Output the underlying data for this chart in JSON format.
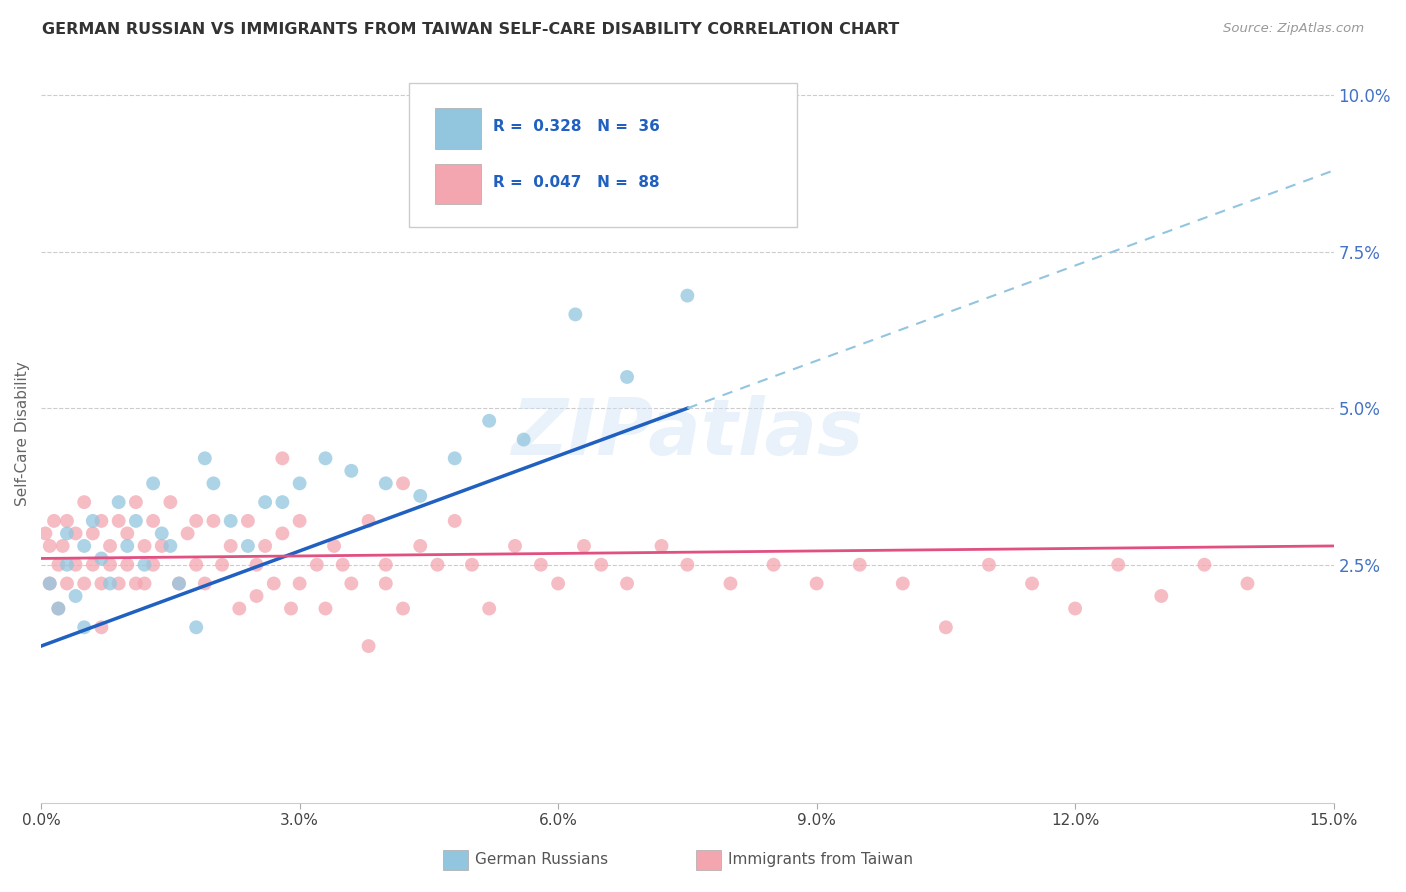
{
  "title": "GERMAN RUSSIAN VS IMMIGRANTS FROM TAIWAN SELF-CARE DISABILITY CORRELATION CHART",
  "source": "Source: ZipAtlas.com",
  "ylabel": "Self-Care Disability",
  "xlim": [
    0.0,
    0.15
  ],
  "ylim": [
    -0.013,
    0.105
  ],
  "yticks": [
    0.025,
    0.05,
    0.075,
    0.1
  ],
  "ytick_labels": [
    "2.5%",
    "5.0%",
    "7.5%",
    "10.0%"
  ],
  "xticks": [
    0.0,
    0.03,
    0.06,
    0.09,
    0.12,
    0.15
  ],
  "xtick_labels": [
    "0.0%",
    "3.0%",
    "6.0%",
    "9.0%",
    "12.0%",
    "15.0%"
  ],
  "color_blue": "#92C5DE",
  "color_pink": "#F4A6B0",
  "color_trend_blue": "#2060C0",
  "color_trend_pink": "#E05080",
  "color_trend_blue_dash": "#92C5DE",
  "watermark": "ZIPatlas",
  "gr_x": [
    0.001,
    0.002,
    0.003,
    0.003,
    0.004,
    0.005,
    0.005,
    0.006,
    0.007,
    0.008,
    0.009,
    0.01,
    0.011,
    0.012,
    0.013,
    0.014,
    0.015,
    0.016,
    0.018,
    0.019,
    0.02,
    0.022,
    0.024,
    0.026,
    0.028,
    0.03,
    0.033,
    0.036,
    0.04,
    0.044,
    0.048,
    0.052,
    0.056,
    0.062,
    0.068,
    0.075
  ],
  "gr_y": [
    0.022,
    0.018,
    0.025,
    0.03,
    0.02,
    0.015,
    0.028,
    0.032,
    0.026,
    0.022,
    0.035,
    0.028,
    0.032,
    0.025,
    0.038,
    0.03,
    0.028,
    0.022,
    0.015,
    0.042,
    0.038,
    0.032,
    0.028,
    0.035,
    0.035,
    0.038,
    0.042,
    0.04,
    0.038,
    0.036,
    0.042,
    0.048,
    0.045,
    0.065,
    0.055,
    0.068
  ],
  "tw_x": [
    0.0005,
    0.001,
    0.001,
    0.0015,
    0.002,
    0.002,
    0.0025,
    0.003,
    0.003,
    0.004,
    0.004,
    0.005,
    0.005,
    0.006,
    0.006,
    0.007,
    0.007,
    0.007,
    0.008,
    0.008,
    0.009,
    0.009,
    0.01,
    0.01,
    0.011,
    0.011,
    0.012,
    0.012,
    0.013,
    0.013,
    0.014,
    0.015,
    0.016,
    0.017,
    0.018,
    0.018,
    0.019,
    0.02,
    0.021,
    0.022,
    0.023,
    0.024,
    0.025,
    0.026,
    0.027,
    0.028,
    0.029,
    0.03,
    0.032,
    0.034,
    0.036,
    0.038,
    0.04,
    0.042,
    0.044,
    0.046,
    0.048,
    0.05,
    0.052,
    0.055,
    0.058,
    0.06,
    0.063,
    0.065,
    0.068,
    0.072,
    0.075,
    0.08,
    0.085,
    0.09,
    0.095,
    0.1,
    0.105,
    0.11,
    0.115,
    0.12,
    0.125,
    0.13,
    0.135,
    0.14,
    0.042,
    0.038,
    0.028,
    0.033,
    0.04,
    0.035,
    0.03,
    0.025
  ],
  "tw_y": [
    0.03,
    0.028,
    0.022,
    0.032,
    0.025,
    0.018,
    0.028,
    0.032,
    0.022,
    0.025,
    0.03,
    0.022,
    0.035,
    0.025,
    0.03,
    0.015,
    0.022,
    0.032,
    0.025,
    0.028,
    0.022,
    0.032,
    0.025,
    0.03,
    0.022,
    0.035,
    0.028,
    0.022,
    0.032,
    0.025,
    0.028,
    0.035,
    0.022,
    0.03,
    0.025,
    0.032,
    0.022,
    0.032,
    0.025,
    0.028,
    0.018,
    0.032,
    0.025,
    0.028,
    0.022,
    0.03,
    0.018,
    0.032,
    0.025,
    0.028,
    0.022,
    0.032,
    0.025,
    0.018,
    0.028,
    0.025,
    0.032,
    0.025,
    0.018,
    0.028,
    0.025,
    0.022,
    0.028,
    0.025,
    0.022,
    0.028,
    0.025,
    0.022,
    0.025,
    0.022,
    0.025,
    0.022,
    0.015,
    0.025,
    0.022,
    0.018,
    0.025,
    0.02,
    0.025,
    0.022,
    0.038,
    0.012,
    0.042,
    0.018,
    0.022,
    0.025,
    0.022,
    0.02
  ],
  "trend_blue_x0": 0.0,
  "trend_blue_y0": 0.012,
  "trend_blue_x1": 0.075,
  "trend_blue_y1": 0.05,
  "trend_blue_dash_x0": 0.075,
  "trend_blue_dash_y0": 0.05,
  "trend_blue_dash_x1": 0.15,
  "trend_blue_dash_y1": 0.088,
  "trend_pink_x0": 0.0,
  "trend_pink_y0": 0.026,
  "trend_pink_x1": 0.15,
  "trend_pink_y1": 0.028
}
